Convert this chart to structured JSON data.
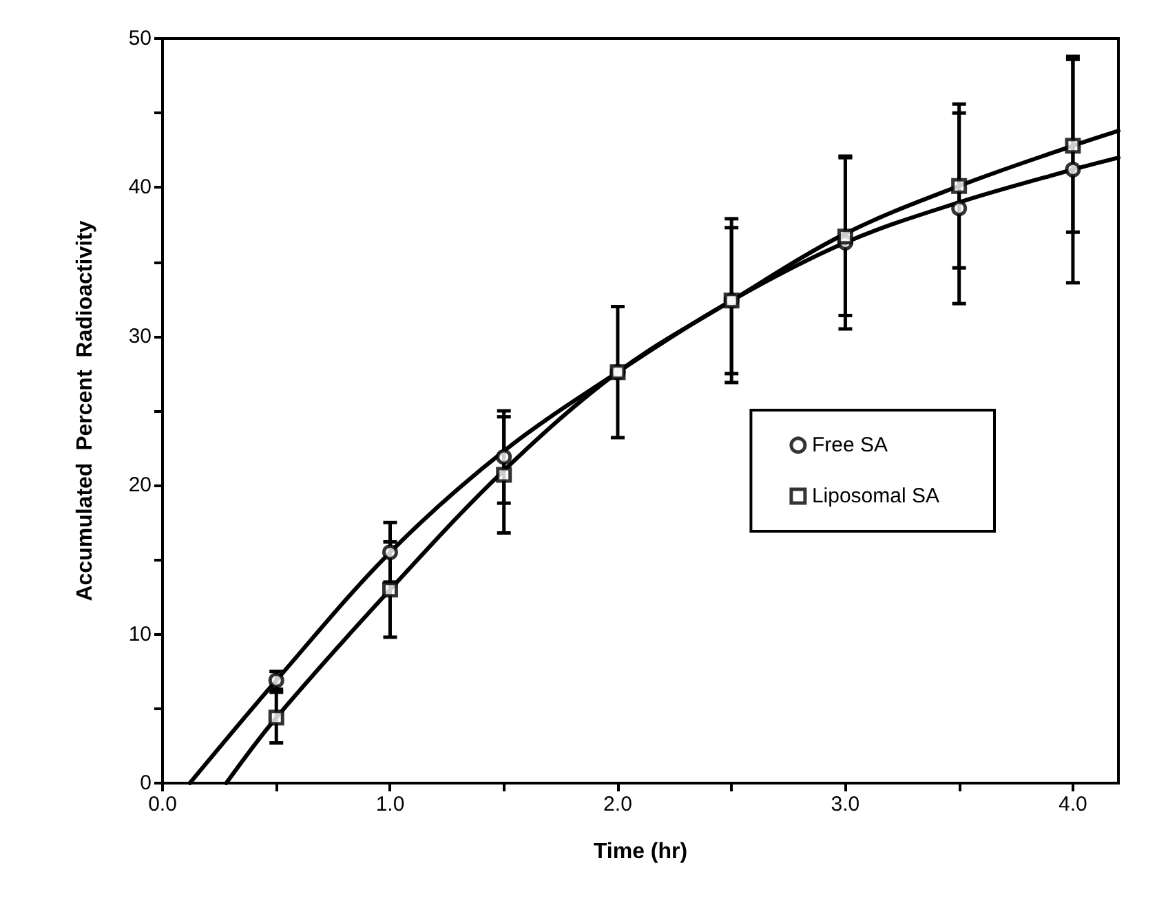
{
  "chart_data": {
    "type": "scatter",
    "xlabel": "Time (hr)",
    "ylabel": "Accumulated  Percent  Radioactivity",
    "xlim": [
      0,
      4.2
    ],
    "ylim": [
      0,
      50
    ],
    "xticks": [
      {
        "value": 0,
        "label": "0.0"
      },
      {
        "value": 0.5,
        "label": null
      },
      {
        "value": 1,
        "label": "1.0"
      },
      {
        "value": 1.5,
        "label": null
      },
      {
        "value": 2,
        "label": "2.0"
      },
      {
        "value": 2.5,
        "label": null
      },
      {
        "value": 3,
        "label": "3.0"
      },
      {
        "value": 3.5,
        "label": null
      },
      {
        "value": 4,
        "label": "4.0"
      }
    ],
    "yticks": [
      0,
      {
        "value": 5,
        "label": null
      },
      10,
      {
        "value": 15,
        "label": null
      },
      20,
      {
        "value": 25,
        "label": null
      },
      30,
      {
        "value": 35,
        "label": null
      },
      40,
      {
        "value": 45,
        "label": null
      },
      50
    ],
    "grid": false,
    "legend": "right",
    "series": [
      {
        "name": "Free SA",
        "color": "#000000",
        "marker": "circle",
        "x": [
          0.5,
          1,
          1.5,
          2,
          2.5,
          3,
          3.5,
          4
        ],
        "values": [
          6.9,
          15.5,
          21.9,
          27.6,
          32.4,
          36.3,
          38.6,
          41.2
        ],
        "errors": [
          0.6,
          2,
          3.1,
          4.4,
          4.9,
          5.8,
          6.4,
          7.6
        ]
      },
      {
        "name": "Liposomal SA",
        "color": "#000000",
        "marker": "square",
        "x": [
          0.5,
          1,
          1.5,
          2,
          2.5,
          3,
          3.5,
          4
        ],
        "values": [
          4.4,
          13,
          20.7,
          27.6,
          32.4,
          36.7,
          40.1,
          42.8
        ],
        "errors": [
          1.7,
          3.2,
          3.9,
          null,
          5.5,
          5.3,
          5.5,
          5.8
        ]
      },
      {
        "type": "line",
        "color": "#000000",
        "marker": "none",
        "x": [
          0.12,
          0.5,
          1,
          1.5,
          2,
          2.5,
          3,
          3.5,
          4,
          4.2
        ],
        "values": [
          0,
          6.9,
          15.5,
          22.3,
          27.6,
          32.4,
          36.3,
          39,
          41.2,
          42
        ]
      },
      {
        "type": "line",
        "color": "#000000",
        "marker": "none",
        "x": [
          0.28,
          0.5,
          1,
          1.5,
          2,
          2.5,
          3,
          3.5,
          4,
          4.2
        ],
        "values": [
          0,
          4.4,
          13,
          21,
          27.6,
          32.4,
          36.9,
          40.1,
          42.8,
          43.8
        ]
      }
    ]
  }
}
